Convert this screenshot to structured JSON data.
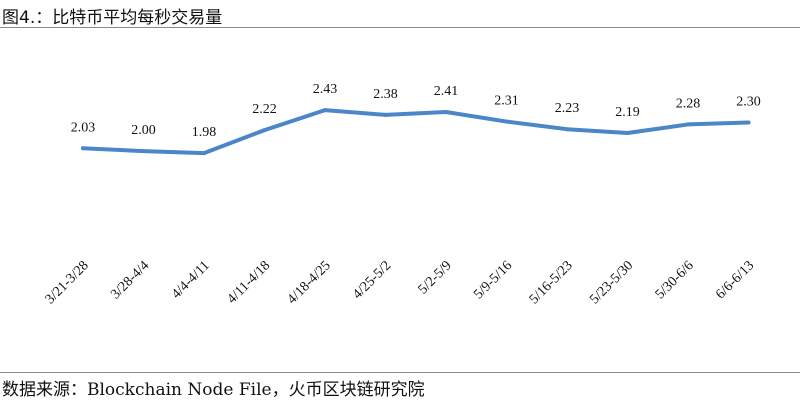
{
  "header": {
    "title": "图4.：比特币平均每秒交易量"
  },
  "footer": {
    "source": "数据来源：Blockchain Node File，火币区块链研究院"
  },
  "chart_data": {
    "type": "line",
    "title": "",
    "xlabel": "",
    "ylabel": "",
    "ylim": [
      0,
      3
    ],
    "grid": false,
    "categories": [
      "3/21-3/28",
      "3/28-4/4",
      "4/4-4/11",
      "4/11-4/18",
      "4/18-4/25",
      "4/25-5/2",
      "5/2-5/9",
      "5/9-5/16",
      "5/16-5/23",
      "5/23-5/30",
      "5/30-6/6",
      "6/6-6/13"
    ],
    "series": [
      {
        "values": [
          2.03,
          2.0,
          1.98,
          2.22,
          2.43,
          2.38,
          2.41,
          2.31,
          2.23,
          2.19,
          2.28,
          2.3
        ],
        "labels": [
          "2.03",
          "2.00",
          "1.98",
          "2.22",
          "2.43",
          "2.38",
          "2.41",
          "2.31",
          "2.23",
          "2.19",
          "2.28",
          "2.30"
        ],
        "color": "#4a86c8"
      }
    ]
  }
}
